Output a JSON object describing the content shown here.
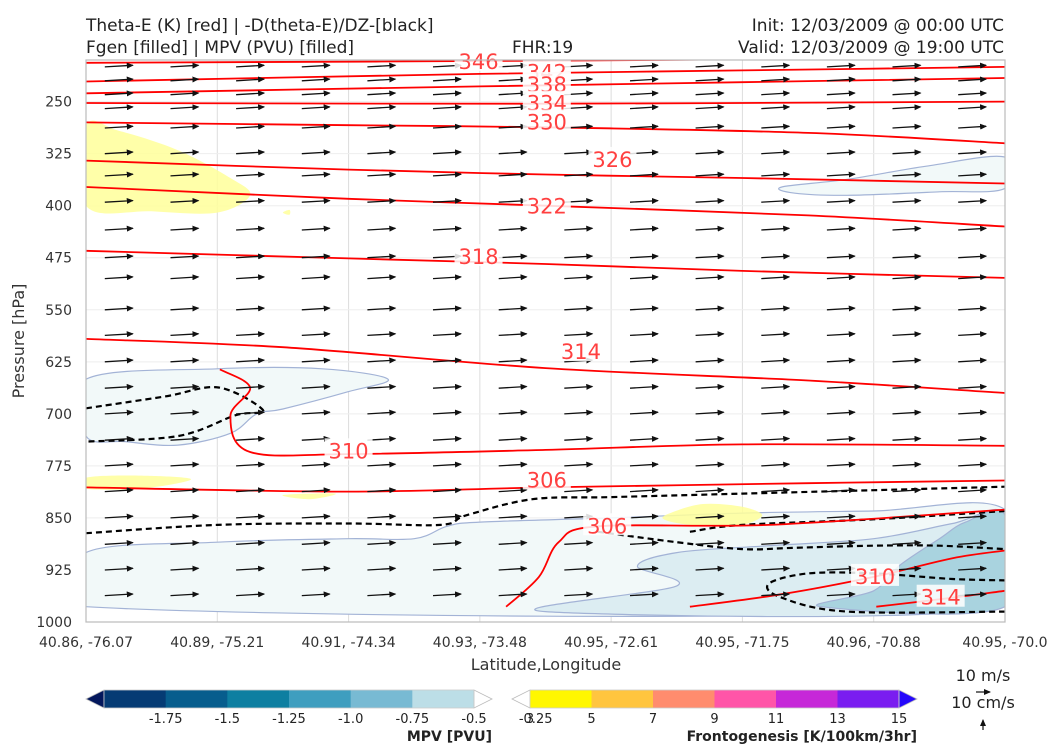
{
  "header": {
    "title_line1_left": "Theta-E (K) [red] | -D(theta-E)/DZ-[black]",
    "title_line2_left": "Fgen [filled] | MPV (PVU) [filled]",
    "fhr": "FHR:19",
    "init": "Init: 12/03/2009 @ 00:00 UTC",
    "valid": "Valid: 12/03/2009 @ 19:00 UTC"
  },
  "colors": {
    "theta_e": "#ff0000",
    "ddz": "#000000",
    "mpv_light": "#f2f9f9",
    "mpv_mid": "#dcedf2",
    "mpv_dark": "#a9d3df",
    "fgen_yellow": "#ffff9a",
    "wind_arrow": "#111111"
  },
  "chart_data": {
    "type": "cross-section",
    "xlabel": "Latitude,Longitude",
    "ylabel": "Pressure [hPa]",
    "x_ticks": [
      "40.86, -76.07",
      "40.89, -75.21",
      "40.91, -74.34",
      "40.93, -73.48",
      "40.95, -72.61",
      "40.95, -71.75",
      "40.96, -70.88",
      "40.95, -70.0"
    ],
    "y_ticks": [
      "250",
      "325",
      "400",
      "475",
      "550",
      "625",
      "700",
      "775",
      "850",
      "925",
      "1000"
    ],
    "y_tick_values": [
      250,
      325,
      400,
      475,
      550,
      625,
      700,
      775,
      850,
      925,
      1000
    ],
    "ylim": [
      1000,
      190
    ],
    "xlim": [
      0,
      7
    ],
    "y_scale": "linear, inverted",
    "grid": true,
    "theta_e_contours": [
      {
        "label": "346",
        "value": 346,
        "points": [
          [
            0,
            194
          ],
          [
            3.5,
            191
          ],
          [
            7,
            186
          ]
        ],
        "labels": [
          [
            2.99,
            193
          ]
        ]
      },
      {
        "label": "342",
        "value": 342,
        "points": [
          [
            0,
            221
          ],
          [
            3,
            210
          ],
          [
            5,
            205
          ],
          [
            7,
            200
          ]
        ],
        "labels": [
          [
            3.51,
            208
          ]
        ]
      },
      {
        "label": "338",
        "value": 338,
        "points": [
          [
            0,
            238
          ],
          [
            3,
            228
          ],
          [
            5,
            222
          ],
          [
            7,
            216
          ]
        ],
        "labels": [
          [
            3.51,
            226
          ]
        ]
      },
      {
        "label": "334",
        "value": 334,
        "points": [
          [
            0,
            252
          ],
          [
            3.5,
            253
          ],
          [
            7,
            250
          ]
        ],
        "labels": [
          [
            3.51,
            253
          ]
        ]
      },
      {
        "label": "330",
        "value": 330,
        "points": [
          [
            0,
            280
          ],
          [
            2,
            284
          ],
          [
            3.5,
            287
          ],
          [
            5.5,
            295
          ],
          [
            7,
            310
          ]
        ],
        "labels": [
          [
            3.51,
            280
          ]
        ]
      },
      {
        "label": "326",
        "value": 326,
        "points": [
          [
            0,
            335
          ],
          [
            2,
            348
          ],
          [
            3.5,
            355
          ],
          [
            5,
            360
          ],
          [
            7,
            368
          ]
        ],
        "labels": [
          [
            4.01,
            334
          ]
        ]
      },
      {
        "label": "322",
        "value": 322,
        "points": [
          [
            0,
            373
          ],
          [
            2,
            390
          ],
          [
            3.5,
            400
          ],
          [
            5.5,
            414
          ],
          [
            7,
            430
          ]
        ],
        "labels": [
          [
            3.51,
            401
          ]
        ]
      },
      {
        "label": "318",
        "value": 318,
        "points": [
          [
            0,
            465
          ],
          [
            2,
            476
          ],
          [
            3.5,
            484
          ],
          [
            5,
            494
          ],
          [
            7,
            504
          ]
        ],
        "labels": [
          [
            2.99,
            474
          ]
        ]
      },
      {
        "label": "314",
        "value": 314,
        "points": [
          [
            0,
            592
          ],
          [
            1.5,
            604
          ],
          [
            3.5,
            634
          ],
          [
            5.5,
            652
          ],
          [
            7,
            670
          ]
        ],
        "labels": [
          [
            3.77,
            611
          ]
        ]
      },
      {
        "label": "310",
        "value": 310,
        "points": [
          [
            1.02,
            636
          ],
          [
            1.25,
            662
          ],
          [
            1.1,
            703
          ],
          [
            1.25,
            755
          ],
          [
            2,
            758
          ],
          [
            3.5,
            752
          ],
          [
            5,
            744
          ],
          [
            7,
            746
          ]
        ],
        "labels": [
          [
            2,
            754
          ]
        ]
      },
      {
        "label": "306",
        "value": 306,
        "points": [
          [
            0,
            806
          ],
          [
            2,
            812
          ],
          [
            3.5,
            806
          ],
          [
            5.5,
            800
          ],
          [
            7,
            796
          ]
        ],
        "labels": [
          [
            3.51,
            796
          ]
        ]
      },
      {
        "label": "306",
        "value": 306,
        "points": [
          [
            3.2,
            978
          ],
          [
            3.45,
            935
          ],
          [
            3.6,
            885
          ],
          [
            3.9,
            862
          ],
          [
            5.2,
            860
          ],
          [
            7,
            838
          ]
        ],
        "labels": [
          [
            3.97,
            862
          ]
        ]
      },
      {
        "label": "310",
        "value": 310,
        "points": [
          [
            4.6,
            978
          ],
          [
            5.3,
            960
          ],
          [
            6.0,
            935
          ],
          [
            6.6,
            908
          ],
          [
            7,
            897
          ]
        ],
        "labels": [
          [
            6.01,
            935
          ]
        ]
      },
      {
        "label": "314",
        "value": 314,
        "points": [
          [
            6.02,
            978
          ],
          [
            6.6,
            965
          ],
          [
            7,
            955
          ]
        ],
        "labels": [
          [
            6.51,
            965
          ]
        ]
      }
    ],
    "ddz_contours": [
      {
        "points": [
          [
            0,
            692
          ],
          [
            0.6,
            675
          ],
          [
            1.01,
            662
          ],
          [
            1.35,
            695
          ],
          [
            1.14,
            702
          ],
          [
            0.7,
            732
          ],
          [
            0,
            740
          ]
        ]
      },
      {
        "points": [
          [
            0,
            872
          ],
          [
            1.0,
            860
          ],
          [
            2.0,
            858
          ],
          [
            2.7,
            860
          ],
          [
            2.9,
            846
          ],
          [
            3.4,
            823
          ],
          [
            4.0,
            820
          ],
          [
            5.0,
            815
          ],
          [
            6.0,
            810
          ],
          [
            7,
            805
          ]
        ]
      },
      {
        "points": [
          [
            3.9,
            870
          ],
          [
            4.5,
            885
          ],
          [
            5.0,
            895
          ],
          [
            5.4,
            893
          ],
          [
            6.0,
            890
          ],
          [
            6.5,
            890
          ],
          [
            7,
            895
          ]
        ]
      },
      {
        "points": [
          [
            7,
            840
          ],
          [
            6.0,
            852
          ],
          [
            5.0,
            860
          ],
          [
            4.6,
            870
          ]
        ]
      },
      {
        "points": [
          [
            7,
            985
          ],
          [
            5.8,
            985
          ],
          [
            5.3,
            965
          ],
          [
            5.2,
            945
          ],
          [
            5.5,
            930
          ],
          [
            6.0,
            930
          ],
          [
            6.6,
            938
          ],
          [
            7,
            940
          ]
        ]
      }
    ],
    "mpv_fill_regions": [
      {
        "level": "light",
        "points": [
          [
            0,
            900
          ],
          [
            1,
            885
          ],
          [
            2,
            880
          ],
          [
            2.5,
            880
          ],
          [
            2.75,
            862
          ],
          [
            3,
            856
          ],
          [
            4,
            850
          ],
          [
            5,
            843
          ],
          [
            6,
            840
          ],
          [
            7,
            838
          ],
          [
            7,
            978
          ],
          [
            0,
            978
          ]
        ]
      },
      {
        "level": "mid",
        "points": [
          [
            3.5,
            985
          ],
          [
            4.5,
            948
          ],
          [
            4.2,
            920
          ],
          [
            4.5,
            900
          ],
          [
            5.2,
            890
          ],
          [
            6.0,
            880
          ],
          [
            6.6,
            858
          ],
          [
            7,
            845
          ],
          [
            7,
            978
          ]
        ]
      },
      {
        "level": "dark",
        "points": [
          [
            5.6,
            978
          ],
          [
            6.0,
            955
          ],
          [
            6.2,
            918
          ],
          [
            6.5,
            880
          ],
          [
            6.7,
            856
          ],
          [
            7,
            846
          ],
          [
            7,
            978
          ]
        ]
      },
      {
        "level": "light",
        "points": [
          [
            0,
            650
          ],
          [
            1.0,
            635
          ],
          [
            1.8,
            635
          ],
          [
            2.3,
            650
          ],
          [
            2.0,
            668
          ],
          [
            1.5,
            693
          ],
          [
            1.3,
            700
          ],
          [
            1.1,
            728
          ],
          [
            0.7,
            745
          ],
          [
            0.3,
            740
          ],
          [
            0,
            732
          ]
        ]
      },
      {
        "level": "light",
        "points": [
          [
            5.3,
            373
          ],
          [
            5.8,
            362
          ],
          [
            6.4,
            343
          ],
          [
            7,
            330
          ],
          [
            7,
            375
          ],
          [
            6.5,
            380
          ],
          [
            5.8,
            385
          ],
          [
            5.4,
            382
          ]
        ]
      }
    ],
    "fgen_fill_regions": [
      {
        "level": "yellow",
        "points": [
          [
            0,
            285
          ],
          [
            0.25,
            292
          ],
          [
            0.7,
            320
          ],
          [
            1.1,
            360
          ],
          [
            1.25,
            385
          ],
          [
            1.0,
            410
          ],
          [
            0.5,
            408
          ],
          [
            0,
            400
          ]
        ]
      },
      {
        "level": "yellow",
        "points": [
          [
            0,
            792
          ],
          [
            0.4,
            789
          ],
          [
            0.8,
            794
          ],
          [
            0.45,
            807
          ],
          [
            0,
            808
          ]
        ]
      },
      {
        "level": "yellow",
        "points": [
          [
            4.45,
            843
          ],
          [
            4.7,
            830
          ],
          [
            5.0,
            834
          ],
          [
            5.15,
            847
          ],
          [
            4.95,
            862
          ],
          [
            4.6,
            860
          ],
          [
            4.4,
            852
          ]
        ]
      },
      {
        "level": "yellow",
        "points": [
          [
            1.5,
            817
          ],
          [
            1.9,
            815
          ],
          [
            1.7,
            823
          ]
        ]
      },
      {
        "level": "yellow",
        "points": [
          [
            1.5,
            410
          ],
          [
            1.55,
            406
          ],
          [
            1.55,
            413
          ]
        ]
      }
    ],
    "wind_rows": [
      200,
      220,
      240,
      260,
      288,
      325,
      357,
      395,
      435,
      475,
      505,
      550,
      587,
      625,
      663,
      700,
      738,
      775,
      812,
      850,
      888,
      925,
      962
    ],
    "wind_columns": 14,
    "wind_vector_sample": {
      "u": 10,
      "v": 0.6
    },
    "mpv_colorbar": {
      "title": "MPV [PVU]",
      "ticks": [
        "-1.75",
        "-1.5",
        "-1.25",
        "-1.0",
        "-0.75",
        "-0.5",
        "-0.25"
      ],
      "colors": [
        "#03175c",
        "#053b74",
        "#075d8d",
        "#0e7fa1",
        "#3f9ebf",
        "#78bad3",
        "#bcdee7",
        "#ffffff"
      ]
    },
    "fgen_colorbar": {
      "title": "Frontogenesis [K/100km/3hr]",
      "ticks": [
        "3",
        "5",
        "7",
        "9",
        "11",
        "13",
        "15"
      ],
      "colors": [
        "#ffffff",
        "#fff700",
        "#ffc53f",
        "#ff8c6e",
        "#ff55a8",
        "#c628d8",
        "#7a1df0",
        "#2508fb"
      ]
    },
    "quiver_key": {
      "horizontal": "10 m/s",
      "vertical": "10 cm/s"
    }
  }
}
